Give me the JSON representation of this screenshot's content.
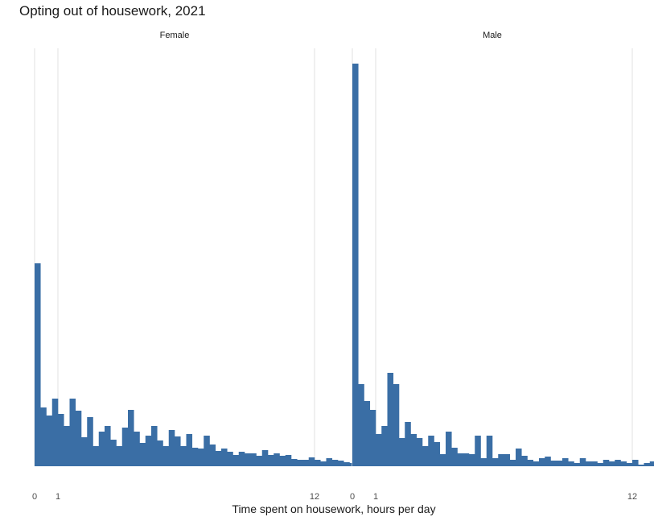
{
  "chart_data": {
    "type": "bar",
    "title": "Opting out of housework, 2021",
    "xlabel": "Time spent on housework, hours per day",
    "ylabel": "",
    "xlim": [
      0,
      12
    ],
    "x_ticks": [
      0,
      1,
      12
    ],
    "bin_width_hours": 0.25,
    "y_axis_shown": false,
    "grid": "vertical at ticks",
    "bar_color": "#3a6ea5",
    "panels": [
      {
        "name": "Female",
        "values": [
          252,
          73,
          63,
          84,
          65,
          50,
          84,
          69,
          36,
          61,
          25,
          43,
          50,
          33,
          25,
          48,
          70,
          43,
          29,
          38,
          50,
          32,
          25,
          45,
          37,
          25,
          40,
          23,
          22,
          38,
          27,
          19,
          22,
          18,
          14,
          18,
          16,
          16,
          13,
          20,
          14,
          16,
          13,
          14,
          9,
          8,
          8,
          11,
          8,
          6,
          10,
          8,
          7,
          5,
          4,
          6,
          6,
          3,
          2,
          6,
          2,
          4,
          2,
          3,
          1,
          1,
          2,
          1,
          1,
          1,
          0,
          1,
          0,
          0,
          0,
          0,
          0,
          0,
          0,
          0,
          0,
          0,
          0,
          0,
          0,
          0,
          0,
          0,
          0,
          0,
          0,
          0,
          0,
          0,
          0,
          0
        ]
      },
      {
        "name": "Male",
        "values": [
          500,
          102,
          81,
          70,
          40,
          50,
          116,
          102,
          35,
          55,
          40,
          35,
          25,
          38,
          30,
          15,
          43,
          23,
          16,
          16,
          15,
          38,
          10,
          38,
          10,
          15,
          15,
          8,
          22,
          13,
          8,
          6,
          10,
          12,
          7,
          7,
          10,
          6,
          4,
          10,
          6,
          6,
          4,
          8,
          6,
          8,
          6,
          4,
          8,
          2,
          4,
          6,
          3,
          3,
          4,
          6,
          2,
          4,
          3,
          3,
          4,
          2,
          2,
          5,
          3,
          2,
          2,
          3,
          1,
          4,
          2,
          2,
          1,
          2,
          2,
          1,
          1,
          1,
          1,
          1,
          0,
          1,
          0,
          0,
          1,
          0,
          1,
          0,
          0,
          0,
          0,
          0,
          0,
          0,
          0,
          0
        ]
      }
    ]
  }
}
